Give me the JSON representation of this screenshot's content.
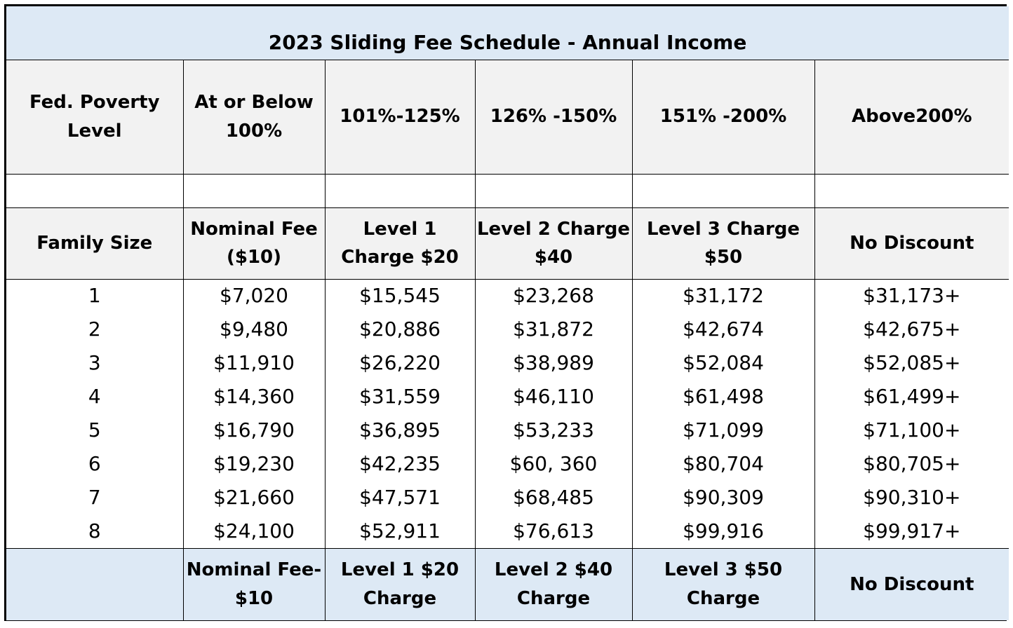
{
  "title": "2023 Sliding Fee Schedule - Annual Income",
  "poverty_header": [
    "Fed. Poverty Level",
    "At or Below 100%",
    "101%-125%",
    "126% -150%",
    "151% -200%",
    "Above200%"
  ],
  "charge_header": [
    "Family Size",
    "Nominal Fee ($10)",
    "Level 1 Charge $20",
    "Level 2 Charge $40",
    "Level 3 Charge $50",
    "No Discount"
  ],
  "rows": [
    [
      "1",
      "$7,020",
      "$15,545",
      "$23,268",
      "$31,172",
      "$31,173+"
    ],
    [
      "2",
      "$9,480",
      "$20,886",
      "$31,872",
      "$42,674",
      "$42,675+"
    ],
    [
      "3",
      "$11,910",
      "$26,220",
      "$38,989",
      "$52,084",
      "$52,085+"
    ],
    [
      "4",
      "$14,360",
      "$31,559",
      "$46,110",
      "$61,498",
      "$61,499+"
    ],
    [
      "5",
      "$16,790",
      "$36,895",
      "$53,233",
      "$71,099",
      "$71,100+"
    ],
    [
      "6",
      "$19,230",
      "$42,235",
      "$60, 360",
      "$80,704",
      "$80,705+"
    ],
    [
      "7",
      "$21,660",
      "$47,571",
      "$68,485",
      "$90,309",
      "$90,310+"
    ],
    [
      "8",
      "$24,100",
      "$52,911",
      "$76,613",
      "$99,916",
      "$99,917+"
    ]
  ],
  "footer": [
    "",
    "Nominal Fee- $10",
    "Level 1 $20 Charge",
    "Level 2 $40 Charge",
    "Level 3 $50 Charge",
    "No Discount"
  ]
}
